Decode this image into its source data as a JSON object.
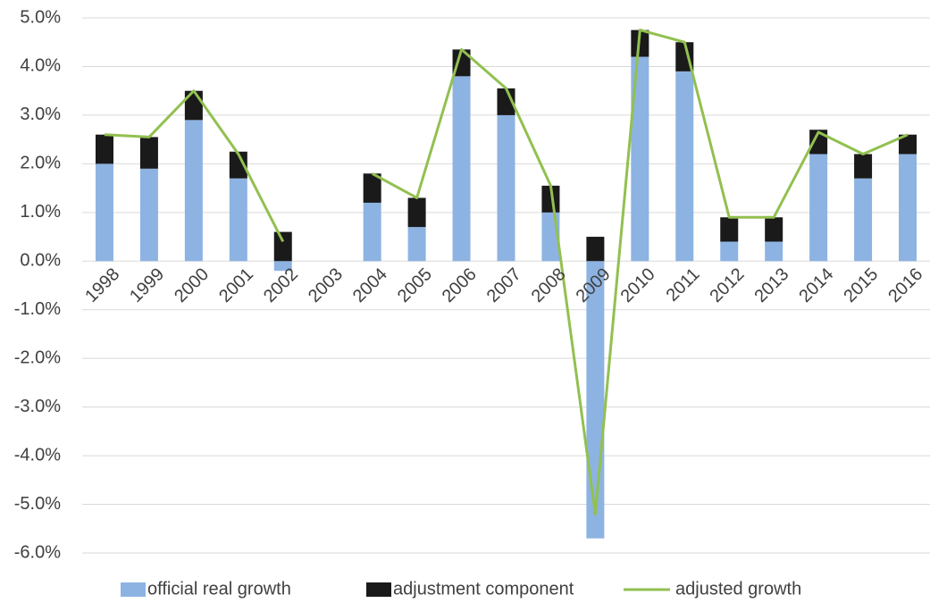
{
  "chart_data": {
    "type": "bar",
    "stacked": true,
    "categories": [
      "1998",
      "1999",
      "2000",
      "2001",
      "2002",
      "2003",
      "2004",
      "2005",
      "2006",
      "2007",
      "2008",
      "2009",
      "2010",
      "2011",
      "2012",
      "2013",
      "2014",
      "2015",
      "2016"
    ],
    "series": [
      {
        "name": "official real growth",
        "type": "bar",
        "color": "#8db3e2",
        "values": [
          2.0,
          1.9,
          2.9,
          1.7,
          -0.2,
          null,
          1.2,
          0.7,
          3.8,
          3.0,
          1.0,
          -5.7,
          4.2,
          3.9,
          0.4,
          0.4,
          2.2,
          1.7,
          2.2
        ]
      },
      {
        "name": "adjustment component",
        "type": "bar",
        "color": "#1a1a1a",
        "values": [
          0.6,
          0.65,
          0.6,
          0.55,
          0.6,
          null,
          0.6,
          0.6,
          0.55,
          0.55,
          0.55,
          0.5,
          0.55,
          0.6,
          0.5,
          0.5,
          0.5,
          0.5,
          0.4
        ]
      },
      {
        "name": "adjusted growth",
        "type": "line",
        "color": "#92c050",
        "values": [
          2.6,
          2.55,
          3.5,
          2.2,
          0.4,
          null,
          1.8,
          1.3,
          4.35,
          3.55,
          1.55,
          -5.2,
          4.75,
          4.5,
          0.9,
          0.9,
          2.65,
          2.2,
          2.6
        ]
      }
    ],
    "ylim": [
      -6,
      5
    ],
    "yticks": [
      {
        "value": -6,
        "label": "-6.0%"
      },
      {
        "value": -5,
        "label": "-5.0%"
      },
      {
        "value": -4,
        "label": "-4.0%"
      },
      {
        "value": -3,
        "label": "-3.0%"
      },
      {
        "value": -2,
        "label": "-2.0%"
      },
      {
        "value": -1,
        "label": "-1.0%"
      },
      {
        "value": 0,
        "label": "0.0%"
      },
      {
        "value": 1,
        "label": "1.0%"
      },
      {
        "value": 2,
        "label": "2.0%"
      },
      {
        "value": 3,
        "label": "3.0%"
      },
      {
        "value": 4,
        "label": "4.0%"
      },
      {
        "value": 5,
        "label": "5.0%"
      }
    ],
    "grid": true,
    "legend": "bottom"
  }
}
